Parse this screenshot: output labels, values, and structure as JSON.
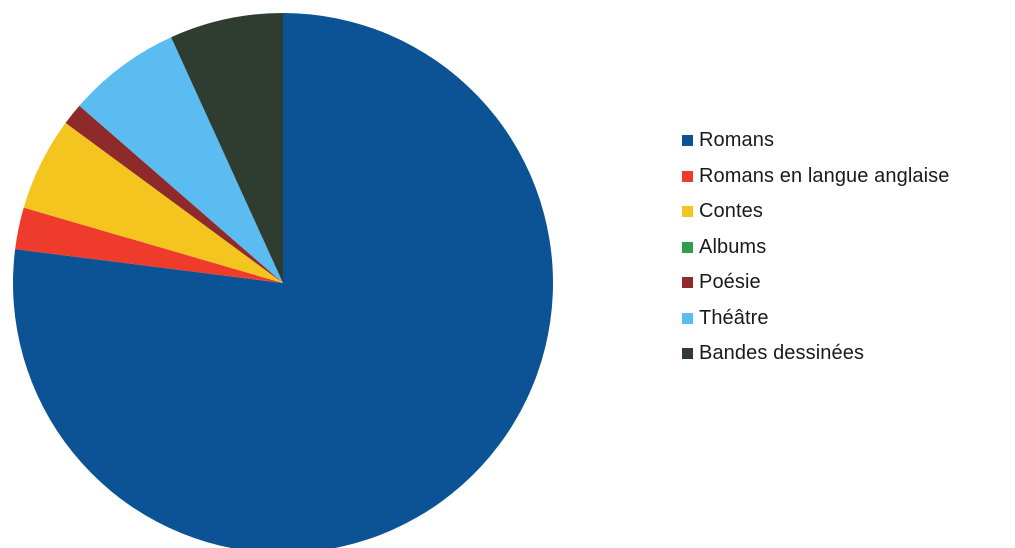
{
  "chart_data": {
    "type": "pie",
    "start_angle_deg": 0,
    "direction": "clockwise",
    "legend_position": "right",
    "categories": [
      "Romans",
      "Romans en langue anglaise",
      "Contes",
      "Albums",
      "Poésie",
      "Théâtre",
      "Bandes dessinées"
    ],
    "values": [
      77.0,
      2.5,
      5.6,
      0.0,
      1.3,
      6.8,
      6.8
    ],
    "colors": [
      "#0b5394",
      "#ef3b2c",
      "#f4c51f",
      "#2e9e4b",
      "#8e2a2a",
      "#5bbcf2",
      "#2f3d30"
    ]
  }
}
